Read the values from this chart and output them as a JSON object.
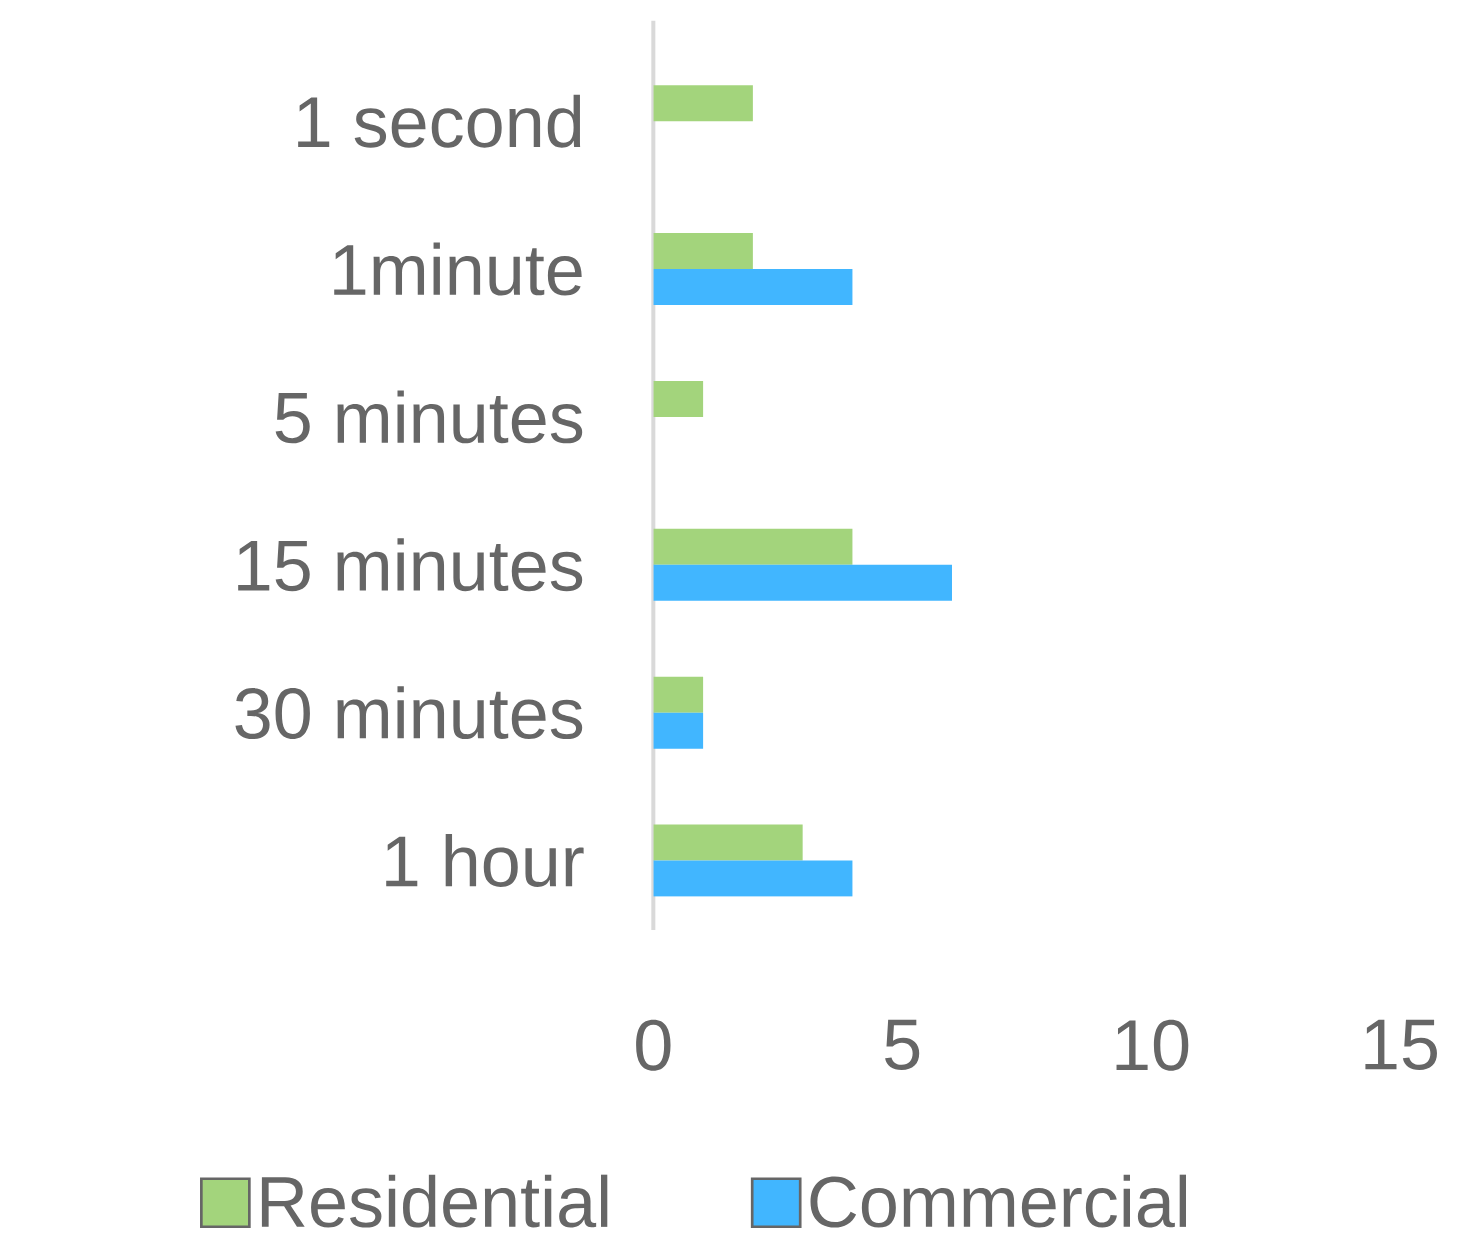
{
  "chart_data": {
    "type": "bar",
    "orientation": "horizontal",
    "categories": [
      "1 second",
      "1minute",
      "5 minutes",
      "15 minutes",
      "30 minutes",
      "1 hour"
    ],
    "series": [
      {
        "name": "Residential",
        "color": "#a3d47c",
        "values": [
          2,
          2,
          1,
          4,
          1,
          3
        ]
      },
      {
        "name": "Commercial",
        "color": "#41b6ff",
        "values": [
          null,
          4,
          null,
          6,
          1,
          4
        ]
      }
    ],
    "xlim": [
      0,
      15
    ],
    "xticks": [
      0,
      5,
      10,
      15
    ],
    "legend": "bottom"
  }
}
